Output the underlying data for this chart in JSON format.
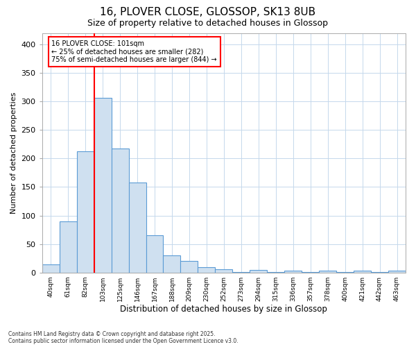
{
  "title1": "16, PLOVER CLOSE, GLOSSOP, SK13 8UB",
  "title2": "Size of property relative to detached houses in Glossop",
  "xlabel": "Distribution of detached houses by size in Glossop",
  "ylabel": "Number of detached properties",
  "bins": [
    "40sqm",
    "61sqm",
    "82sqm",
    "103sqm",
    "125sqm",
    "146sqm",
    "167sqm",
    "188sqm",
    "209sqm",
    "230sqm",
    "252sqm",
    "273sqm",
    "294sqm",
    "315sqm",
    "336sqm",
    "357sqm",
    "378sqm",
    "400sqm",
    "421sqm",
    "442sqm",
    "463sqm"
  ],
  "bar_heights": [
    14,
    90,
    212,
    306,
    218,
    158,
    65,
    30,
    20,
    9,
    6,
    1,
    4,
    1,
    3,
    1,
    3,
    1,
    3,
    1,
    3
  ],
  "bar_color": "#cfe0f0",
  "bar_edge_color": "#5b9bd5",
  "grid_color": "#c5d8ec",
  "bg_color": "#ffffff",
  "fig_bg_color": "#ffffff",
  "red_line_bin_index": 3,
  "annotation_line1": "16 PLOVER CLOSE: 101sqm",
  "annotation_line2": "← 25% of detached houses are smaller (282)",
  "annotation_line3": "75% of semi-detached houses are larger (844) →",
  "footnote1": "Contains HM Land Registry data © Crown copyright and database right 2025.",
  "footnote2": "Contains public sector information licensed under the Open Government Licence v3.0.",
  "ylim": [
    0,
    420
  ],
  "yticks": [
    0,
    50,
    100,
    150,
    200,
    250,
    300,
    350,
    400
  ]
}
